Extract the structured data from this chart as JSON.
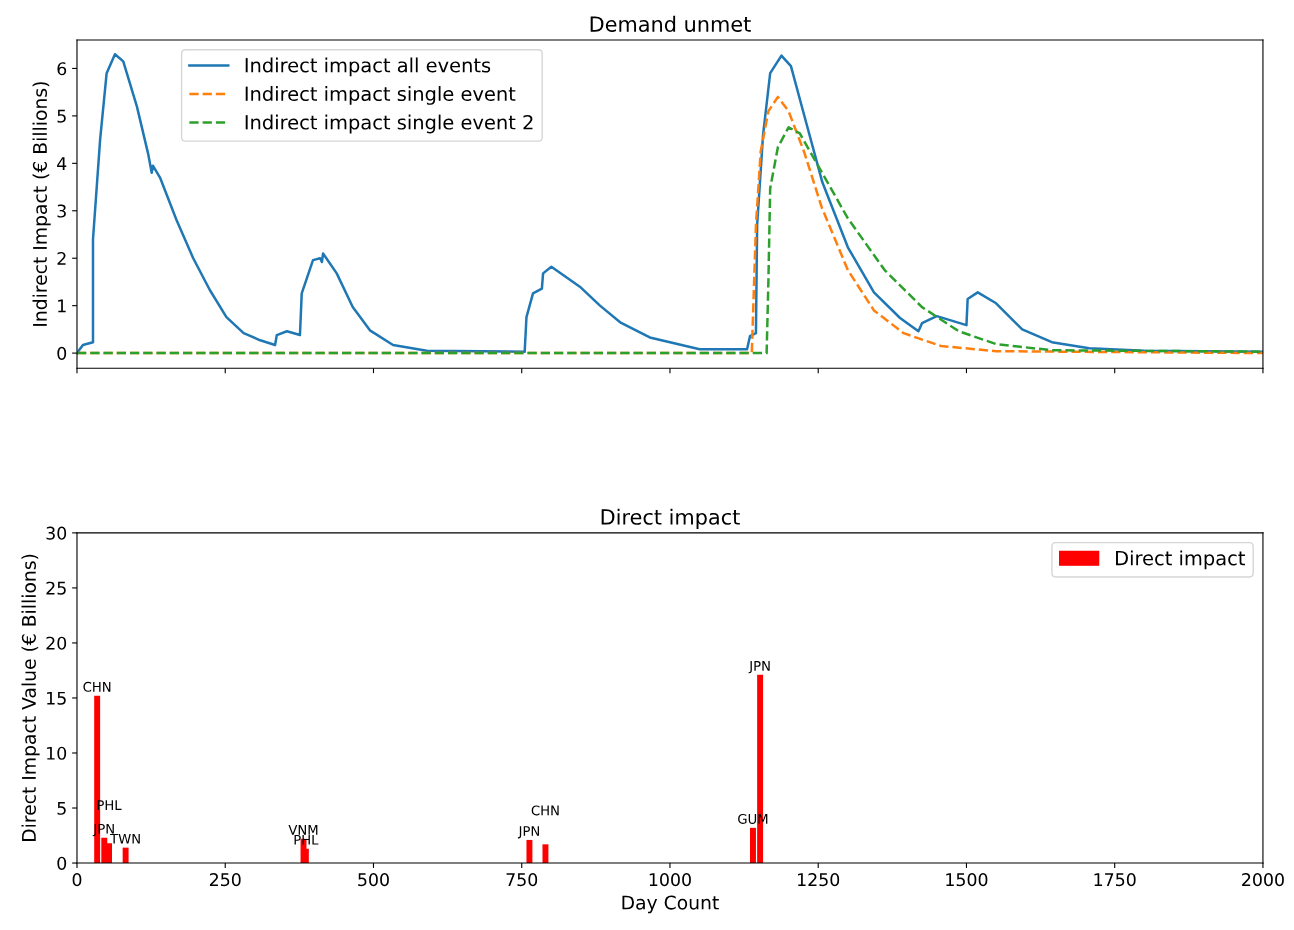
{
  "chart_data": [
    {
      "type": "line",
      "title": "Demand unmet",
      "ylabel": "Indirect Impact (€ Billions)",
      "xlim": [
        0,
        2000
      ],
      "xticks": [
        {
          "value": 0,
          "label": null
        },
        {
          "value": 250,
          "label": null
        },
        {
          "value": 500,
          "label": null
        },
        {
          "value": 750,
          "label": null
        },
        {
          "value": 1000,
          "label": null
        },
        {
          "value": 1250,
          "label": null
        },
        {
          "value": 1500,
          "label": null
        },
        {
          "value": 1750,
          "label": null
        },
        {
          "value": 2000,
          "label": null
        }
      ],
      "ylim": [
        -0.32,
        6.6
      ],
      "yticks": [
        0,
        1,
        2,
        3,
        4,
        5,
        6
      ],
      "tick_labels": "y",
      "legend": "top left",
      "grid": false,
      "series": [
        {
          "name": "Indirect impact all events",
          "color": "#1f77b4",
          "line_style": "solid",
          "x": [
            0,
            10,
            27,
            27,
            39,
            50,
            64,
            78,
            101,
            120,
            126,
            128,
            140,
            168,
            196,
            224,
            252,
            281,
            309,
            334,
            337,
            354,
            376,
            379,
            398,
            410,
            413,
            415,
            438,
            465,
            494,
            533,
            590,
            755,
            758,
            769,
            784,
            786,
            800,
            848,
            882,
            916,
            966,
            1050,
            1130,
            1135,
            1145,
            1147,
            1157,
            1169,
            1188,
            1204,
            1226,
            1257,
            1300,
            1344,
            1388,
            1419,
            1425,
            1450,
            1500,
            1502,
            1519,
            1550,
            1594,
            1644,
            1707,
            1800,
            2000
          ],
          "values": [
            0.0,
            0.17,
            0.23,
            2.4,
            4.5,
            5.9,
            6.3,
            6.15,
            5.2,
            4.2,
            3.8,
            3.95,
            3.7,
            2.8,
            2.0,
            1.33,
            0.76,
            0.42,
            0.27,
            0.17,
            0.38,
            0.46,
            0.38,
            1.26,
            1.96,
            2.0,
            1.92,
            2.1,
            1.68,
            0.97,
            0.48,
            0.17,
            0.05,
            0.03,
            0.76,
            1.26,
            1.36,
            1.68,
            1.82,
            1.4,
            1.0,
            0.65,
            0.33,
            0.08,
            0.08,
            0.36,
            0.42,
            2.7,
            4.6,
            5.9,
            6.27,
            6.05,
            5.03,
            3.6,
            2.23,
            1.28,
            0.74,
            0.46,
            0.63,
            0.78,
            0.59,
            1.14,
            1.28,
            1.05,
            0.5,
            0.23,
            0.1,
            0.05,
            0.03
          ]
        },
        {
          "name": "Indirect impact single event",
          "color": "#ff7f0e",
          "line_style": "dashed",
          "x": [
            0,
            1138,
            1145,
            1153,
            1166,
            1182,
            1200,
            1226,
            1256,
            1300,
            1344,
            1394,
            1457,
            1550,
            2000
          ],
          "values": [
            0.0,
            0.0,
            2.7,
            4.25,
            5.1,
            5.4,
            5.1,
            4.25,
            3.07,
            1.75,
            0.9,
            0.42,
            0.15,
            0.04,
            0.0
          ]
        },
        {
          "name": "Indirect impact single event 2",
          "color": "#2ca02c",
          "line_style": "dashed",
          "x": [
            0,
            1163,
            1166,
            1169,
            1182,
            1200,
            1219,
            1257,
            1300,
            1362,
            1425,
            1487,
            1550,
            1644,
            2000
          ],
          "values": [
            0.0,
            0.0,
            1.52,
            3.47,
            4.34,
            4.76,
            4.63,
            3.79,
            2.84,
            1.75,
            0.97,
            0.46,
            0.19,
            0.06,
            0.03
          ]
        }
      ]
    },
    {
      "type": "bar",
      "title": "Direct impact",
      "xlabel": "Day Count",
      "ylabel": "Direct Impact Value (€ Billions)",
      "xlim": [
        0,
        2000
      ],
      "xticks": [
        0,
        250,
        500,
        750,
        1000,
        1250,
        1500,
        1750,
        2000
      ],
      "ylim": [
        0,
        30
      ],
      "yticks": [
        0,
        5,
        10,
        15,
        20,
        25,
        30
      ],
      "legend": "top right",
      "grid": false,
      "series": [
        {
          "name": "Direct impact",
          "color": "#ff0000",
          "x": [
            34,
            46,
            54,
            82,
            382,
            386,
            763,
            790,
            1140,
            1152
          ],
          "values": [
            15.2,
            2.3,
            1.8,
            1.4,
            2.2,
            1.3,
            2.1,
            1.7,
            3.2,
            17.1
          ],
          "value_labels": [
            "CHN",
            "JPN",
            "PHL",
            "TWN",
            "VNM",
            "PHL",
            "JPN",
            "CHN",
            "GUM",
            "JPN"
          ]
        }
      ]
    }
  ]
}
